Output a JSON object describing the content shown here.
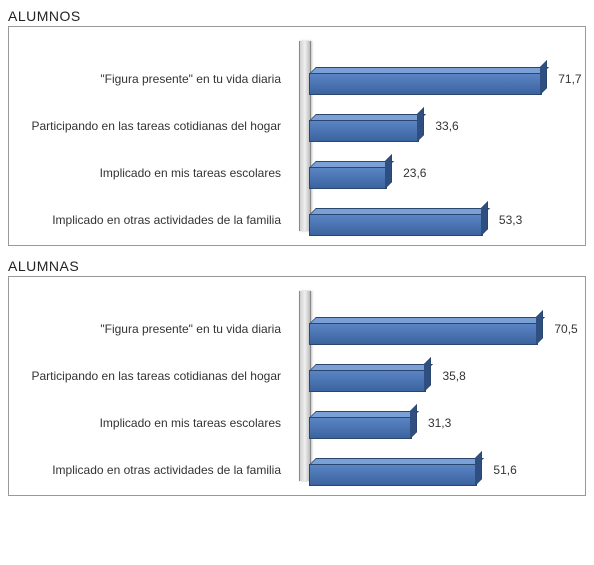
{
  "background_color": "#ffffff",
  "border_color": "#999999",
  "bar_colors": {
    "front_top": "#5b84c4",
    "front_bottom": "#3b639f",
    "top_face": "#7ba0d6",
    "side_face": "#2f4f80",
    "border": "#2a466f"
  },
  "label_fontsize": 12,
  "title_fontsize": 14,
  "max_value": 80,
  "sections": [
    {
      "title": "ALUMNOS",
      "bars": [
        {
          "label": "\"Figura presente\" en tu vida  diaria",
          "value": 71.7,
          "display": "71,7"
        },
        {
          "label": "Participando en las tareas cotidianas del hogar",
          "value": 33.6,
          "display": "33,6"
        },
        {
          "label": "Implicado en mis tareas escolares",
          "value": 23.6,
          "display": "23,6"
        },
        {
          "label": "Implicado en otras actividades de la familia",
          "value": 53.3,
          "display": "53,3"
        }
      ]
    },
    {
      "title": "ALUMNAS",
      "bars": [
        {
          "label": "\"Figura presente\" en tu vida  diaria",
          "value": 70.5,
          "display": "70,5"
        },
        {
          "label": "Participando en las tareas cotidianas del hogar",
          "value": 35.8,
          "display": "35,8"
        },
        {
          "label": "Implicado en mis tareas escolares",
          "value": 31.3,
          "display": "31,3"
        },
        {
          "label": "Implicado en otras actividades de la familia",
          "value": 51.6,
          "display": "51,6"
        }
      ]
    }
  ]
}
